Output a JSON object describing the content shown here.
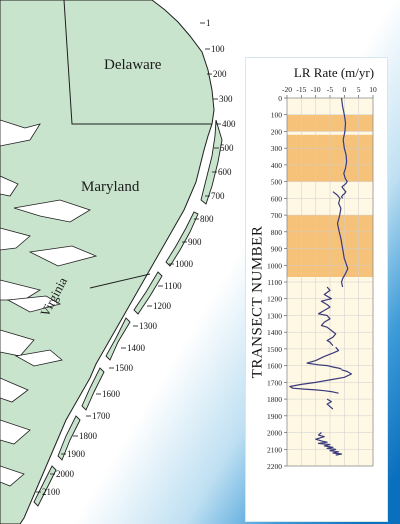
{
  "map": {
    "states": [
      "Delaware",
      "Maryland",
      "Virginia"
    ],
    "transect_markers": [
      "1",
      "100",
      "200",
      "300",
      "400",
      "500",
      "600",
      "700",
      "800",
      "900",
      "1000",
      "1100",
      "1200",
      "1300",
      "1400",
      "1500",
      "1600",
      "1700",
      "1800",
      "1900",
      "2000",
      "2100"
    ],
    "colors": {
      "land": "#c9e4cd",
      "coast": "#1f1f1f",
      "water_gradient": [
        "#ffffff",
        "#0a79c7"
      ]
    }
  },
  "chart_data": {
    "type": "line",
    "title": "LR Rate (m/yr)",
    "ylabel": "TRANSECT NUMBER",
    "xlim": [
      -20,
      10
    ],
    "ylim": [
      0,
      2200
    ],
    "y_inverted": true,
    "x_ticks": [
      "-20",
      "-15",
      "-10",
      "-5",
      "0",
      "5",
      "10"
    ],
    "y_ticks": [
      "0",
      "100",
      "200",
      "300",
      "400",
      "500",
      "600",
      "700",
      "800",
      "900",
      "1000",
      "1100",
      "1200",
      "1300",
      "1400",
      "1500",
      "1600",
      "1700",
      "1800",
      "1900",
      "2000",
      "2100",
      "2200"
    ],
    "highlight_bands": [
      [
        100,
        200
      ],
      [
        220,
        500
      ],
      [
        700,
        1070
      ]
    ],
    "colors": {
      "line": "#3a3a7a",
      "band": "#f6c178",
      "band_light": "#fef8e4",
      "grid": "#cfcfcf"
    },
    "series": [
      {
        "x": [
          -1,
          -0.6,
          0,
          0.4,
          0.2,
          -0.4,
          0,
          0.6,
          0.8,
          0.4,
          -0.2,
          0.3,
          1,
          0.6,
          0,
          -0.8,
          -0.5,
          0,
          0.5,
          0.2,
          -0.5,
          -1,
          -0.6
        ],
        "y": [
          0,
          50,
          100,
          150,
          200,
          250,
          300,
          340,
          380,
          420,
          450,
          480,
          500,
          510,
          520,
          530,
          540,
          550,
          560,
          570,
          580,
          590,
          600
        ]
      },
      {
        "x": [
          -4,
          -2.5,
          -1.5,
          -2,
          -1.2,
          -1.6,
          -2.4,
          -1.8,
          -1.2,
          -0.8,
          -0.4,
          0,
          0.6,
          1.2,
          0.4,
          -0.6,
          -1,
          -0.6
        ],
        "y": [
          560,
          580,
          600,
          630,
          660,
          700,
          750,
          800,
          840,
          880,
          920,
          960,
          990,
          1020,
          1050,
          1080,
          1100,
          1130
        ]
      },
      {
        "x": [
          -6,
          -5,
          -7,
          -4.5,
          -8,
          -6,
          -5,
          -7,
          -9,
          -6,
          -5,
          -7,
          -8,
          -6,
          -4.5,
          -3,
          -4,
          -6,
          -5,
          -4
        ],
        "y": [
          1130,
          1150,
          1175,
          1200,
          1215,
          1235,
          1250,
          1270,
          1290,
          1300,
          1320,
          1340,
          1360,
          1370,
          1390,
          1410,
          1430,
          1450,
          1460,
          1480
        ]
      },
      {
        "x": [
          -3,
          -2,
          -4,
          -7,
          -10,
          -13,
          -9,
          -6,
          -4,
          -2,
          -1
        ],
        "y": [
          1490,
          1510,
          1525,
          1545,
          1570,
          1585,
          1595,
          1600,
          1608,
          1615,
          1620
        ]
      },
      {
        "x": [
          -1,
          1,
          2.5,
          0,
          -5,
          -10,
          -15,
          -19,
          -18,
          -14,
          -10,
          -7,
          -4,
          -2
        ],
        "y": [
          1625,
          1635,
          1650,
          1670,
          1685,
          1700,
          1712,
          1725,
          1735,
          1740,
          1745,
          1750,
          1757,
          1765
        ]
      },
      {
        "x": [
          -6,
          -4.5,
          -6,
          -5,
          -4
        ],
        "y": [
          1800,
          1815,
          1830,
          1845,
          1860
        ]
      },
      {
        "x": [
          -8,
          -9,
          -7,
          -10,
          -8,
          -6,
          -9,
          -5,
          -7,
          -4,
          -6,
          -3,
          -5,
          -2,
          -4,
          -1,
          -3
        ],
        "y": [
          2000,
          2015,
          2025,
          2040,
          2050,
          2058,
          2065,
          2072,
          2080,
          2088,
          2095,
          2100,
          2108,
          2115,
          2122,
          2128,
          2135
        ]
      }
    ]
  }
}
